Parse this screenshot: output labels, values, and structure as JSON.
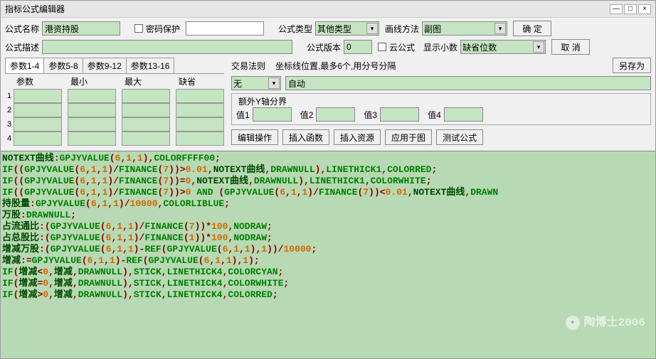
{
  "window": {
    "title": "指标公式编辑器",
    "min": "—",
    "max": "□",
    "close": "×"
  },
  "labels": {
    "name": "公式名称",
    "pwd": "密码保护",
    "type": "公式类型",
    "drawMethod": "画线方法",
    "desc": "公式描述",
    "version": "公式版本",
    "cloud": "云公式",
    "decimals": "显示小数",
    "ok": "确 定",
    "cancel": "取 消",
    "saveAs": "另存为",
    "tradeRule": "交易法则",
    "coordHint": "坐标线位置,最多6个,用分号分隔",
    "extraYAxis": "额外Y轴分界",
    "v1": "值1",
    "v2": "值2",
    "v3": "值3",
    "v4": "值4",
    "editOp": "编辑操作",
    "insertFn": "插入函数",
    "insertRes": "插入资源",
    "applyChart": "应用于图",
    "testFormula": "测试公式"
  },
  "fields": {
    "name": "港资持股",
    "type": "其他类型",
    "drawMethod": "副图",
    "desc": "",
    "version": "0",
    "decimals": "缺省位数",
    "tradeRule": "无",
    "coordValue": "自动"
  },
  "tabs": [
    "参数1-4",
    "参数5-8",
    "参数9-12",
    "参数13-16"
  ],
  "paramHeaders": [
    "参数",
    "最小",
    "最大",
    "缺省"
  ],
  "rowNums": [
    "1",
    "2",
    "3",
    "4"
  ],
  "code": [
    [
      [
        "t-id",
        "NOTEXT曲线"
      ],
      [
        "t-sym",
        ":"
      ],
      [
        "t-kw",
        "GPJYVALUE"
      ],
      [
        "t-sym",
        "("
      ],
      [
        "t-num",
        "6"
      ],
      [
        "t-sym",
        ","
      ],
      [
        "t-num",
        "1"
      ],
      [
        "t-sym",
        ","
      ],
      [
        "t-num",
        "1"
      ],
      [
        "t-sym",
        "),"
      ],
      [
        "t-kw",
        "COLORFFFF00"
      ],
      [
        "t-sym",
        ";"
      ]
    ],
    [
      [
        "t-kw",
        "IF"
      ],
      [
        "t-sym",
        "(("
      ],
      [
        "t-kw",
        "GPJYVALUE"
      ],
      [
        "t-sym",
        "("
      ],
      [
        "t-num",
        "6"
      ],
      [
        "t-sym",
        ","
      ],
      [
        "t-num",
        "1"
      ],
      [
        "t-sym",
        ","
      ],
      [
        "t-num",
        "1"
      ],
      [
        "t-sym",
        ")/"
      ],
      [
        "t-kw",
        "FINANCE"
      ],
      [
        "t-sym",
        "("
      ],
      [
        "t-num",
        "7"
      ],
      [
        "t-sym",
        "))>"
      ],
      [
        "t-num",
        "0.01"
      ],
      [
        "t-sym",
        ","
      ],
      [
        "t-id",
        "NOTEXT曲线"
      ],
      [
        "t-sym",
        ","
      ],
      [
        "t-kw",
        "DRAWNULL"
      ],
      [
        "t-sym",
        "),"
      ],
      [
        "t-kw",
        "LINETHICK1"
      ],
      [
        "t-sym",
        ","
      ],
      [
        "t-kw",
        "COLORRED"
      ],
      [
        "t-sym",
        ";"
      ]
    ],
    [
      [
        "t-kw",
        "IF"
      ],
      [
        "t-sym",
        "(("
      ],
      [
        "t-kw",
        "GPJYVALUE"
      ],
      [
        "t-sym",
        "("
      ],
      [
        "t-num",
        "6"
      ],
      [
        "t-sym",
        ","
      ],
      [
        "t-num",
        "1"
      ],
      [
        "t-sym",
        ","
      ],
      [
        "t-num",
        "1"
      ],
      [
        "t-sym",
        ")/"
      ],
      [
        "t-kw",
        "FINANCE"
      ],
      [
        "t-sym",
        "("
      ],
      [
        "t-num",
        "7"
      ],
      [
        "t-sym",
        "))="
      ],
      [
        "t-num",
        "0"
      ],
      [
        "t-sym",
        ","
      ],
      [
        "t-id",
        "NOTEXT曲线"
      ],
      [
        "t-sym",
        ","
      ],
      [
        "t-kw",
        "DRAWNULL"
      ],
      [
        "t-sym",
        "),"
      ],
      [
        "t-kw",
        "LINETHICK1"
      ],
      [
        "t-sym",
        ","
      ],
      [
        "t-kw",
        "COLORWHITE"
      ],
      [
        "t-sym",
        ";"
      ]
    ],
    [
      [
        "t-kw",
        "IF"
      ],
      [
        "t-sym",
        "(("
      ],
      [
        "t-kw",
        "GPJYVALUE"
      ],
      [
        "t-sym",
        "("
      ],
      [
        "t-num",
        "6"
      ],
      [
        "t-sym",
        ","
      ],
      [
        "t-num",
        "1"
      ],
      [
        "t-sym",
        ","
      ],
      [
        "t-num",
        "1"
      ],
      [
        "t-sym",
        ")/"
      ],
      [
        "t-kw",
        "FINANCE"
      ],
      [
        "t-sym",
        "("
      ],
      [
        "t-num",
        "7"
      ],
      [
        "t-sym",
        "))>"
      ],
      [
        "t-num",
        "0"
      ],
      [
        "t-sym",
        " "
      ],
      [
        "t-kw",
        "AND"
      ],
      [
        "t-sym",
        " ("
      ],
      [
        "t-kw",
        "GPJYVALUE"
      ],
      [
        "t-sym",
        "("
      ],
      [
        "t-num",
        "6"
      ],
      [
        "t-sym",
        ","
      ],
      [
        "t-num",
        "1"
      ],
      [
        "t-sym",
        ","
      ],
      [
        "t-num",
        "1"
      ],
      [
        "t-sym",
        ")/"
      ],
      [
        "t-kw",
        "FINANCE"
      ],
      [
        "t-sym",
        "("
      ],
      [
        "t-num",
        "7"
      ],
      [
        "t-sym",
        "))<"
      ],
      [
        "t-num",
        "0.01"
      ],
      [
        "t-sym",
        ","
      ],
      [
        "t-id",
        "NOTEXT曲线"
      ],
      [
        "t-sym",
        ","
      ],
      [
        "t-kw",
        "DRAWN"
      ]
    ],
    [
      [
        "t-id",
        "持股量"
      ],
      [
        "t-sym",
        ":"
      ],
      [
        "t-kw",
        "GPJYVALUE"
      ],
      [
        "t-sym",
        "("
      ],
      [
        "t-num",
        "6"
      ],
      [
        "t-sym",
        ","
      ],
      [
        "t-num",
        "1"
      ],
      [
        "t-sym",
        ","
      ],
      [
        "t-num",
        "1"
      ],
      [
        "t-sym",
        ")/"
      ],
      [
        "t-num",
        "10000"
      ],
      [
        "t-sym",
        ","
      ],
      [
        "t-kw",
        "COLORLIBLUE"
      ],
      [
        "t-sym",
        ";"
      ]
    ],
    [
      [
        "t-id",
        "万股"
      ],
      [
        "t-sym",
        ":"
      ],
      [
        "t-kw",
        "DRAWNULL"
      ],
      [
        "t-sym",
        ";"
      ]
    ],
    [
      [
        "t-id",
        "占流通比"
      ],
      [
        "t-sym",
        ":("
      ],
      [
        "t-kw",
        "GPJYVALUE"
      ],
      [
        "t-sym",
        "("
      ],
      [
        "t-num",
        "6"
      ],
      [
        "t-sym",
        ","
      ],
      [
        "t-num",
        "1"
      ],
      [
        "t-sym",
        ","
      ],
      [
        "t-num",
        "1"
      ],
      [
        "t-sym",
        ")/"
      ],
      [
        "t-kw",
        "FINANCE"
      ],
      [
        "t-sym",
        "("
      ],
      [
        "t-num",
        "7"
      ],
      [
        "t-sym",
        "))*"
      ],
      [
        "t-num",
        "100"
      ],
      [
        "t-sym",
        ","
      ],
      [
        "t-kw",
        "NODRAW"
      ],
      [
        "t-sym",
        ";"
      ]
    ],
    [
      [
        "t-id",
        "占总股比"
      ],
      [
        "t-sym",
        ":("
      ],
      [
        "t-kw",
        "GPJYVALUE"
      ],
      [
        "t-sym",
        "("
      ],
      [
        "t-num",
        "6"
      ],
      [
        "t-sym",
        ","
      ],
      [
        "t-num",
        "1"
      ],
      [
        "t-sym",
        ","
      ],
      [
        "t-num",
        "1"
      ],
      [
        "t-sym",
        ")/"
      ],
      [
        "t-kw",
        "FINANCE"
      ],
      [
        "t-sym",
        "("
      ],
      [
        "t-num",
        "1"
      ],
      [
        "t-sym",
        "))*"
      ],
      [
        "t-num",
        "100"
      ],
      [
        "t-sym",
        ","
      ],
      [
        "t-kw",
        "NODRAW"
      ],
      [
        "t-sym",
        ";"
      ]
    ],
    [
      [
        "t-id",
        "增减万股"
      ],
      [
        "t-sym",
        ":("
      ],
      [
        "t-kw",
        "GPJYVALUE"
      ],
      [
        "t-sym",
        "("
      ],
      [
        "t-num",
        "6"
      ],
      [
        "t-sym",
        ","
      ],
      [
        "t-num",
        "1"
      ],
      [
        "t-sym",
        ","
      ],
      [
        "t-num",
        "1"
      ],
      [
        "t-sym",
        ")-"
      ],
      [
        "t-kw",
        "REF"
      ],
      [
        "t-sym",
        "("
      ],
      [
        "t-kw",
        "GPJYVALUE"
      ],
      [
        "t-sym",
        "("
      ],
      [
        "t-num",
        "6"
      ],
      [
        "t-sym",
        ","
      ],
      [
        "t-num",
        "1"
      ],
      [
        "t-sym",
        ","
      ],
      [
        "t-num",
        "1"
      ],
      [
        "t-sym",
        "),"
      ],
      [
        "t-num",
        "1"
      ],
      [
        "t-sym",
        "))/"
      ],
      [
        "t-num",
        "10000"
      ],
      [
        "t-sym",
        ";"
      ]
    ],
    [
      [
        "t-id",
        "增减"
      ],
      [
        "t-sym",
        ":="
      ],
      [
        "t-kw",
        "GPJYVALUE"
      ],
      [
        "t-sym",
        "("
      ],
      [
        "t-num",
        "6"
      ],
      [
        "t-sym",
        ","
      ],
      [
        "t-num",
        "1"
      ],
      [
        "t-sym",
        ","
      ],
      [
        "t-num",
        "1"
      ],
      [
        "t-sym",
        ")-"
      ],
      [
        "t-kw",
        "REF"
      ],
      [
        "t-sym",
        "("
      ],
      [
        "t-kw",
        "GPJYVALUE"
      ],
      [
        "t-sym",
        "("
      ],
      [
        "t-num",
        "6"
      ],
      [
        "t-sym",
        ","
      ],
      [
        "t-num",
        "1"
      ],
      [
        "t-sym",
        ","
      ],
      [
        "t-num",
        "1"
      ],
      [
        "t-sym",
        "),"
      ],
      [
        "t-num",
        "1"
      ],
      [
        "t-sym",
        ");"
      ]
    ],
    [
      [
        "t-kw",
        "IF"
      ],
      [
        "t-sym",
        "("
      ],
      [
        "t-id",
        "增减"
      ],
      [
        "t-sym",
        "<"
      ],
      [
        "t-num",
        "0"
      ],
      [
        "t-sym",
        ","
      ],
      [
        "t-id",
        "增减"
      ],
      [
        "t-sym",
        ","
      ],
      [
        "t-kw",
        "DRAWNULL"
      ],
      [
        "t-sym",
        "),"
      ],
      [
        "t-kw",
        "STICK"
      ],
      [
        "t-sym",
        ","
      ],
      [
        "t-kw",
        "LINETHICK4"
      ],
      [
        "t-sym",
        ","
      ],
      [
        "t-kw",
        "COLORCYAN"
      ],
      [
        "t-sym",
        ";"
      ]
    ],
    [
      [
        "t-kw",
        "IF"
      ],
      [
        "t-sym",
        "("
      ],
      [
        "t-id",
        "增减"
      ],
      [
        "t-sym",
        "="
      ],
      [
        "t-num",
        "0"
      ],
      [
        "t-sym",
        ","
      ],
      [
        "t-id",
        "增减"
      ],
      [
        "t-sym",
        ","
      ],
      [
        "t-kw",
        "DRAWNULL"
      ],
      [
        "t-sym",
        "),"
      ],
      [
        "t-kw",
        "STICK"
      ],
      [
        "t-sym",
        ","
      ],
      [
        "t-kw",
        "LINETHICK4"
      ],
      [
        "t-sym",
        ","
      ],
      [
        "t-kw",
        "COLORWHITE"
      ],
      [
        "t-sym",
        ";"
      ]
    ],
    [
      [
        "t-kw",
        "IF"
      ],
      [
        "t-sym",
        "("
      ],
      [
        "t-id",
        "增减"
      ],
      [
        "t-sym",
        ">"
      ],
      [
        "t-num",
        "0"
      ],
      [
        "t-sym",
        ","
      ],
      [
        "t-id",
        "增减"
      ],
      [
        "t-sym",
        ","
      ],
      [
        "t-kw",
        "DRAWNULL"
      ],
      [
        "t-sym",
        "),"
      ],
      [
        "t-kw",
        "STICK"
      ],
      [
        "t-sym",
        ","
      ],
      [
        "t-kw",
        "LINETHICK4"
      ],
      [
        "t-sym",
        ","
      ],
      [
        "t-kw",
        "COLORRED"
      ],
      [
        "t-sym",
        ";"
      ]
    ]
  ],
  "watermark": "陶博士2006"
}
